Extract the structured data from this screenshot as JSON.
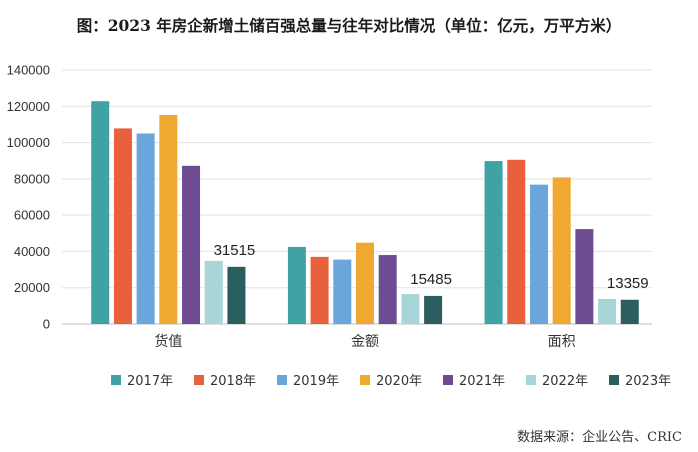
{
  "title": "图：2023 年房企新增土储百强总量与往年对比情况（单位：亿元，万平方米）",
  "source": "数据来源：企业公告、CRIC",
  "chart_data": {
    "type": "bar",
    "categories": [
      "货值",
      "金额",
      "面积"
    ],
    "ylim": [
      0,
      140000
    ],
    "yticks": [
      0,
      20000,
      40000,
      60000,
      80000,
      100000,
      120000,
      140000
    ],
    "grid": true,
    "legend_position": "bottom",
    "series": [
      {
        "name": "2017年",
        "color": "#3fa3a6",
        "values": [
          122800,
          42500,
          89800
        ]
      },
      {
        "name": "2018年",
        "color": "#e8603c",
        "values": [
          107800,
          37000,
          90500
        ]
      },
      {
        "name": "2019年",
        "color": "#6aa6dc",
        "values": [
          105000,
          35500,
          76800
        ]
      },
      {
        "name": "2020年",
        "color": "#f0a832",
        "values": [
          115200,
          44800,
          80800
        ]
      },
      {
        "name": "2021年",
        "color": "#6d4c91",
        "values": [
          87200,
          38000,
          52300
        ]
      },
      {
        "name": "2022年",
        "color": "#a8d5d8",
        "values": [
          34800,
          16500,
          13800
        ]
      },
      {
        "name": "2023年",
        "color": "#2b5f5f",
        "values": [
          31515,
          15485,
          13359
        ]
      }
    ],
    "data_labels": [
      {
        "series": "2023年",
        "category": "货值",
        "text": "31515"
      },
      {
        "series": "2023年",
        "category": "金额",
        "text": "15485"
      },
      {
        "series": "2023年",
        "category": "面积",
        "text": "13359"
      }
    ]
  }
}
